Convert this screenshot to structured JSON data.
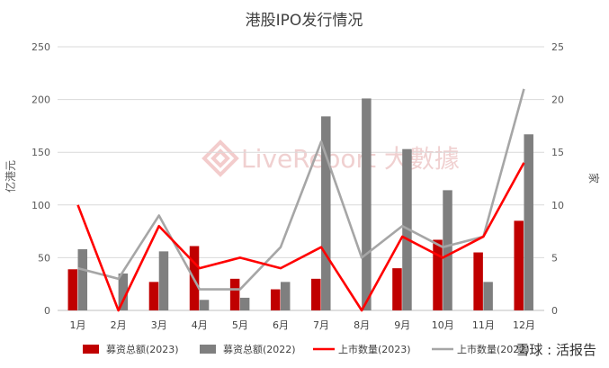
{
  "chart_data": {
    "type": "bar",
    "title": "港股IPO发行情况",
    "categories": [
      "1月",
      "2月",
      "3月",
      "4月",
      "5月",
      "6月",
      "7月",
      "8月",
      "9月",
      "10月",
      "11月",
      "12月"
    ],
    "ylabel": "亿港元",
    "y2label": "家",
    "ylim": [
      0,
      250
    ],
    "y2lim": [
      0,
      25
    ],
    "yticks": [
      "0",
      "50",
      "100",
      "150",
      "200",
      "250"
    ],
    "y2ticks": [
      "0",
      "5",
      "10",
      "15",
      "20",
      "25"
    ],
    "grid": true,
    "legend_position": "bottom",
    "series": [
      {
        "name": "募资总额(2023)",
        "type": "bar",
        "axis": "left",
        "color": "#c00000",
        "values": [
          39,
          0,
          27,
          61,
          30,
          20,
          30,
          0,
          40,
          67,
          55,
          85
        ]
      },
      {
        "name": "募资总额(2022)",
        "type": "bar",
        "axis": "left",
        "color": "#7f7f7f",
        "values": [
          58,
          35,
          56,
          10,
          12,
          27,
          184,
          201,
          153,
          114,
          27,
          167
        ]
      },
      {
        "name": "上市数量(2023)",
        "type": "line",
        "axis": "right",
        "color": "#ff0000",
        "values": [
          10,
          0,
          8,
          4,
          5,
          4,
          6,
          0,
          7,
          5,
          7,
          14
        ]
      },
      {
        "name": "上市数量(2022)",
        "type": "line",
        "axis": "right",
        "color": "#a6a6a6",
        "values": [
          4,
          3,
          9,
          2,
          2,
          6,
          16,
          5,
          8,
          6,
          7,
          21
        ]
      }
    ]
  },
  "watermark": "LiveReport 大數據",
  "credit": "雪球 : 活报告"
}
